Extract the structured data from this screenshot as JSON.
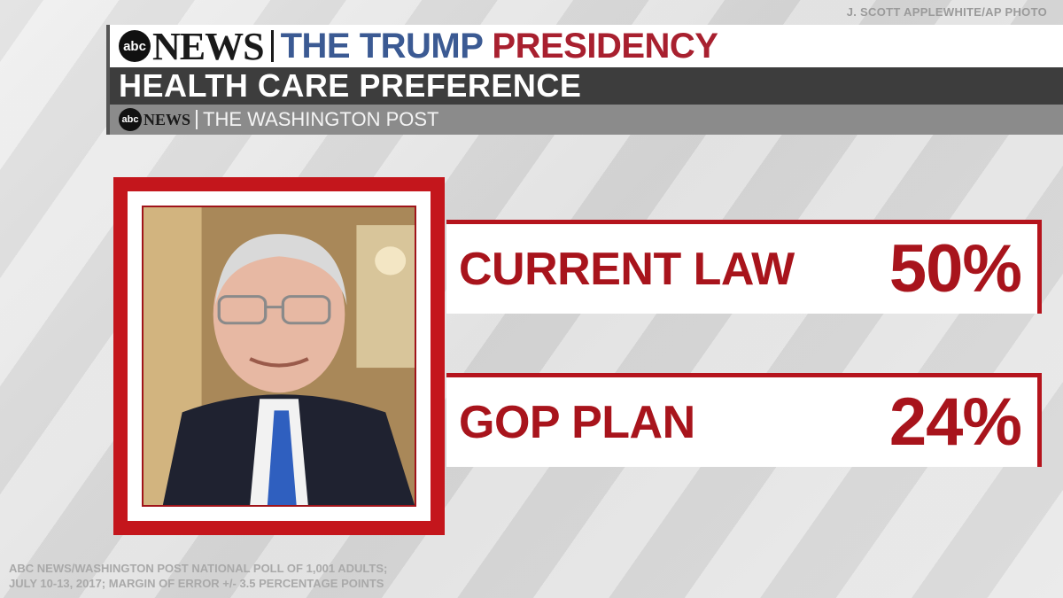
{
  "credit": "J. SCOTT APPLEWHITE/AP PHOTO",
  "header": {
    "logo_text": "abc",
    "brand": "NEWS",
    "title_blue": "THE TRUMP",
    "title_red": "PRESIDENCY",
    "subtitle": "HEALTH CARE PREFERENCE",
    "source_logo_text": "abc",
    "source_brand": "NEWS",
    "source_partner": "THE WASHINGTON POST"
  },
  "colors": {
    "accent_red": "#a8141c",
    "title_blue": "#3b5a93",
    "header_dark": "#3d3d3d"
  },
  "chart_data": {
    "type": "bar",
    "title": "HEALTH CARE PREFERENCE",
    "categories": [
      "CURRENT LAW",
      "GOP PLAN"
    ],
    "values": [
      50,
      24
    ],
    "value_labels": [
      "50%",
      "24%"
    ],
    "unit": "%"
  },
  "footnote": {
    "line1": "ABC NEWS/WASHINGTON POST NATIONAL POLL OF 1,001 ADULTS;",
    "line2": "JULY 10-13, 2017; MARGIN OF ERROR +/- 3.5 PERCENTAGE POINTS"
  }
}
